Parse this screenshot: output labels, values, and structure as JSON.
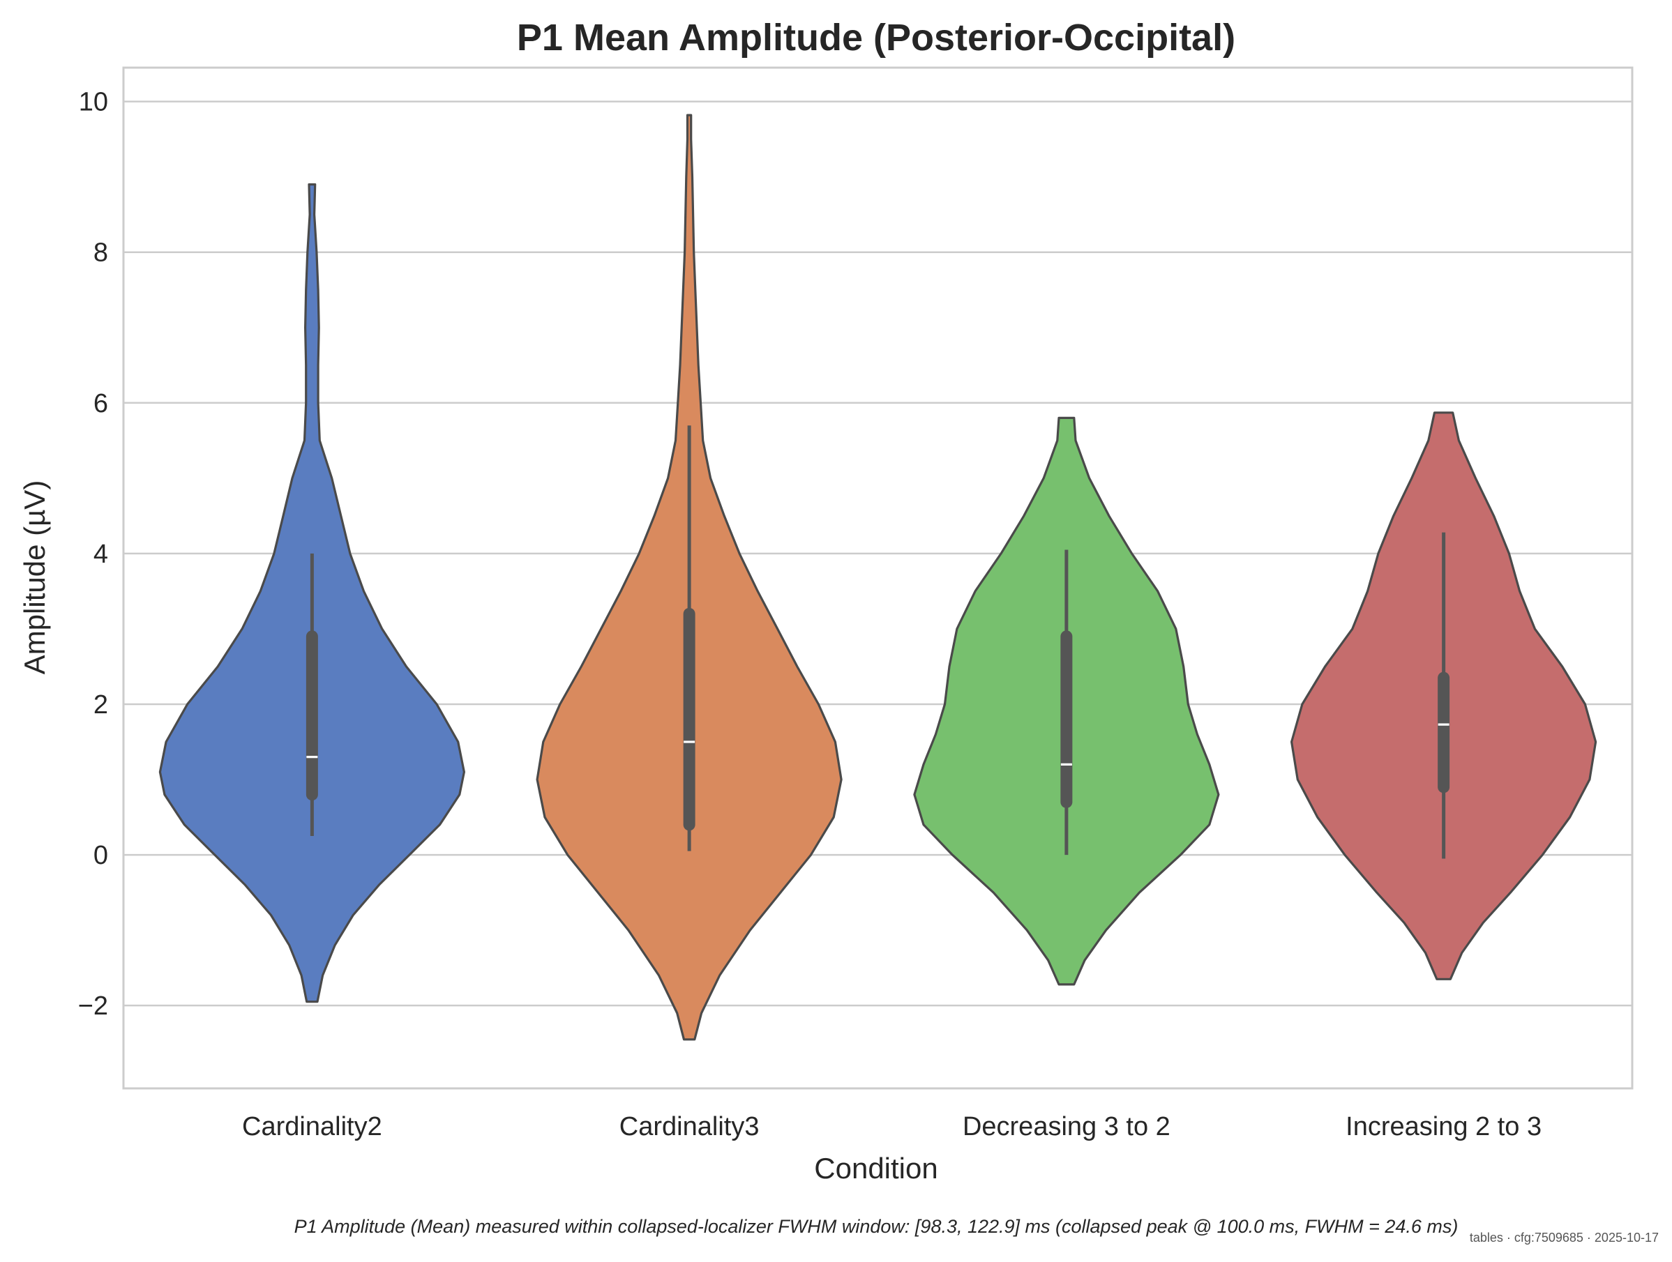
{
  "chart_data": {
    "type": "violin",
    "title": "P1 Mean Amplitude (Posterior-Occipital)",
    "xlabel": "Condition",
    "ylabel": "Amplitude (µV)",
    "ylim": [
      -3.1,
      10.45
    ],
    "yticks": [
      -2,
      0,
      2,
      4,
      6,
      8,
      10
    ],
    "ytick_labels": [
      "−2",
      "0",
      "2",
      "4",
      "6",
      "8",
      "10"
    ],
    "grid": "horizontal",
    "categories": [
      "Cardinality2",
      "Cardinality3",
      "Decreasing 3 to 2",
      "Increasing 2 to 3"
    ],
    "series": [
      {
        "category": "Cardinality2",
        "color": "#5a7dc0",
        "range": [
          -1.95,
          8.9
        ],
        "median": 1.3,
        "q1": 0.8,
        "q3": 2.9,
        "whisker_low": 0.25,
        "whisker_high": 4.0,
        "density_profile": [
          [
            -1.95,
            0.035
          ],
          [
            -1.6,
            0.07
          ],
          [
            -1.2,
            0.15
          ],
          [
            -0.8,
            0.27
          ],
          [
            -0.4,
            0.44
          ],
          [
            0.0,
            0.64
          ],
          [
            0.4,
            0.84
          ],
          [
            0.8,
            0.97
          ],
          [
            1.1,
            1.0
          ],
          [
            1.5,
            0.96
          ],
          [
            2.0,
            0.82
          ],
          [
            2.5,
            0.62
          ],
          [
            3.0,
            0.46
          ],
          [
            3.5,
            0.34
          ],
          [
            4.0,
            0.25
          ],
          [
            4.5,
            0.19
          ],
          [
            5.0,
            0.13
          ],
          [
            5.5,
            0.05
          ],
          [
            6.0,
            0.04
          ],
          [
            6.5,
            0.04
          ],
          [
            7.0,
            0.045
          ],
          [
            7.5,
            0.04
          ],
          [
            8.0,
            0.03
          ],
          [
            8.5,
            0.015
          ],
          [
            8.9,
            0.02
          ]
        ]
      },
      {
        "category": "Cardinality3",
        "color": "#d98a5e",
        "range": [
          -2.45,
          9.82
        ],
        "median": 1.5,
        "q1": 0.4,
        "q3": 3.2,
        "whisker_low": 0.05,
        "whisker_high": 5.7,
        "density_profile": [
          [
            -2.45,
            0.035
          ],
          [
            -2.1,
            0.08
          ],
          [
            -1.6,
            0.2
          ],
          [
            -1.0,
            0.4
          ],
          [
            -0.5,
            0.6
          ],
          [
            0.0,
            0.8
          ],
          [
            0.5,
            0.95
          ],
          [
            1.0,
            1.0
          ],
          [
            1.5,
            0.96
          ],
          [
            2.0,
            0.85
          ],
          [
            2.5,
            0.71
          ],
          [
            3.0,
            0.58
          ],
          [
            3.5,
            0.45
          ],
          [
            4.0,
            0.33
          ],
          [
            4.5,
            0.23
          ],
          [
            5.0,
            0.14
          ],
          [
            5.5,
            0.09
          ],
          [
            6.0,
            0.075
          ],
          [
            6.5,
            0.06
          ],
          [
            7.0,
            0.05
          ],
          [
            7.5,
            0.04
          ],
          [
            8.0,
            0.03
          ],
          [
            8.5,
            0.025
          ],
          [
            9.0,
            0.02
          ],
          [
            9.5,
            0.012
          ],
          [
            9.82,
            0.012
          ]
        ]
      },
      {
        "category": "Decreasing 3 to 2",
        "color": "#77c06e",
        "range": [
          -1.72,
          5.8
        ],
        "median": 1.2,
        "q1": 0.7,
        "q3": 2.9,
        "whisker_low": 0.0,
        "whisker_high": 4.05,
        "density_profile": [
          [
            -1.72,
            0.05
          ],
          [
            -1.4,
            0.12
          ],
          [
            -1.0,
            0.26
          ],
          [
            -0.5,
            0.48
          ],
          [
            0.0,
            0.75
          ],
          [
            0.4,
            0.94
          ],
          [
            0.8,
            1.0
          ],
          [
            1.2,
            0.94
          ],
          [
            1.6,
            0.86
          ],
          [
            2.0,
            0.8
          ],
          [
            2.5,
            0.77
          ],
          [
            3.0,
            0.72
          ],
          [
            3.5,
            0.6
          ],
          [
            4.0,
            0.43
          ],
          [
            4.5,
            0.28
          ],
          [
            5.0,
            0.15
          ],
          [
            5.5,
            0.06
          ],
          [
            5.8,
            0.05
          ]
        ]
      },
      {
        "category": "Increasing 2 to 3",
        "color": "#c56d6d",
        "range": [
          -1.65,
          5.87
        ],
        "median": 1.73,
        "q1": 0.9,
        "q3": 2.35,
        "whisker_low": -0.05,
        "whisker_high": 4.28,
        "density_profile": [
          [
            -1.65,
            0.045
          ],
          [
            -1.3,
            0.12
          ],
          [
            -0.9,
            0.26
          ],
          [
            -0.5,
            0.44
          ],
          [
            0.0,
            0.65
          ],
          [
            0.5,
            0.83
          ],
          [
            1.0,
            0.96
          ],
          [
            1.5,
            1.0
          ],
          [
            2.0,
            0.93
          ],
          [
            2.5,
            0.78
          ],
          [
            3.0,
            0.6
          ],
          [
            3.5,
            0.5
          ],
          [
            4.0,
            0.43
          ],
          [
            4.5,
            0.33
          ],
          [
            5.0,
            0.21
          ],
          [
            5.5,
            0.1
          ],
          [
            5.87,
            0.06
          ]
        ]
      }
    ],
    "caption": "P1 Amplitude (Mean) measured within collapsed-localizer FWHM window: [98.3, 122.9] ms (collapsed peak @ 100.0 ms, FWHM = 24.6 ms)",
    "stamp": "tables · cfg:7509685 · 2025-10-17"
  }
}
